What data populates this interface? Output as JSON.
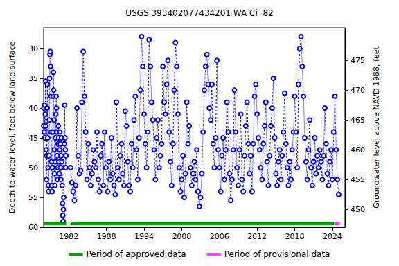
{
  "chart_data": {
    "type": "line",
    "title": "USGS 393402077434201 WA Ci  82",
    "ylabel": "Depth to water level, feet below land surface",
    "y2label": "Groundwater level above NAVD 1988, feet",
    "xlim": [
      1978,
      2026
    ],
    "xticks": [
      1982,
      1988,
      1994,
      2000,
      2006,
      2012,
      2018,
      2024
    ],
    "ylim": [
      26.5,
      60
    ],
    "yticks": [
      30,
      35,
      40,
      45,
      50,
      55,
      60
    ],
    "y2lim": [
      447,
      480.5
    ],
    "y2ticks": [
      450,
      455,
      460,
      465,
      470,
      475
    ],
    "grid": false,
    "legend": "bottom",
    "x": [
      1978.0,
      1978.05,
      1978.1,
      1978.15,
      1978.2,
      1978.25,
      1978.3,
      1978.35,
      1978.4,
      1978.45,
      1978.5,
      1978.55,
      1978.6,
      1978.65,
      1978.7,
      1978.75,
      1978.8,
      1978.85,
      1978.9,
      1978.95,
      1979.0,
      1979.05,
      1979.1,
      1979.15,
      1979.2,
      1979.25,
      1979.3,
      1979.35,
      1979.4,
      1979.45,
      1979.5,
      1979.55,
      1979.6,
      1979.65,
      1979.7,
      1979.75,
      1979.8,
      1979.85,
      1979.9,
      1979.95,
      1980.0,
      1980.05,
      1980.1,
      1980.15,
      1980.2,
      1980.25,
      1980.3,
      1980.35,
      1980.4,
      1980.45,
      1980.5,
      1980.55,
      1980.6,
      1980.65,
      1980.7,
      1980.75,
      1980.8,
      1980.85,
      1980.9,
      1980.95,
      1981.0,
      1981.05,
      1981.1,
      1981.15,
      1981.2,
      1981.25,
      1981.3,
      1981.35,
      1981.4,
      1981.45,
      1981.5,
      1981.55,
      1981.9,
      1982.3,
      1982.5,
      1982.7,
      1982.9,
      1983.1,
      1983.3,
      1983.5,
      1983.7,
      1983.9,
      1984.1,
      1984.3,
      1984.5,
      1984.7,
      1984.9,
      1985.1,
      1985.3,
      1985.5,
      1985.7,
      1985.9,
      1986.1,
      1986.3,
      1986.5,
      1986.7,
      1986.9,
      1987.1,
      1987.3,
      1987.5,
      1987.7,
      1987.9,
      1988.2,
      1988.4,
      1988.6,
      1988.8,
      1989.0,
      1989.2,
      1989.4,
      1989.6,
      1989.8,
      1990.0,
      1990.2,
      1990.4,
      1990.6,
      1990.8,
      1991.0,
      1991.2,
      1991.4,
      1991.6,
      1991.8,
      1992.0,
      1992.2,
      1992.4,
      1992.6,
      1992.8,
      1993.0,
      1993.2,
      1993.4,
      1993.6,
      1993.8,
      1994.0,
      1994.2,
      1994.4,
      1994.6,
      1994.8,
      1995.0,
      1995.2,
      1995.4,
      1995.6,
      1995.8,
      1996.0,
      1996.2,
      1996.4,
      1996.6,
      1996.8,
      1997.0,
      1997.2,
      1997.4,
      1997.6,
      1997.8,
      1998.0,
      1998.2,
      1998.4,
      1998.6,
      1998.8,
      1999.0,
      1999.2,
      1999.4,
      1999.6,
      1999.8,
      2000.0,
      2000.2,
      2000.4,
      2000.6,
      2000.8,
      2001.0,
      2001.2,
      2001.4,
      2001.6,
      2001.8,
      2002.0,
      2002.2,
      2002.4,
      2002.6,
      2002.8,
      2003.0,
      2003.2,
      2003.4,
      2003.6,
      2003.8,
      2004.0,
      2004.2,
      2004.4,
      2004.6,
      2004.8,
      2005.0,
      2005.2,
      2005.4,
      2005.6,
      2005.8,
      2006.0,
      2006.2,
      2006.4,
      2006.6,
      2006.8,
      2007.0,
      2007.2,
      2007.4,
      2007.6,
      2007.8,
      2008.0,
      2008.2,
      2008.4,
      2008.6,
      2008.8,
      2009.0,
      2009.2,
      2009.4,
      2009.6,
      2009.8,
      2010.0,
      2010.2,
      2010.4,
      2010.6,
      2010.8,
      2011.0,
      2011.2,
      2011.4,
      2011.6,
      2011.8,
      2012.0,
      2012.2,
      2012.4,
      2012.6,
      2012.8,
      2013.0,
      2013.2,
      2013.4,
      2013.6,
      2013.8,
      2014.0,
      2014.2,
      2014.4,
      2014.6,
      2014.8,
      2015.0,
      2015.2,
      2015.4,
      2015.6,
      2015.8,
      2016.0,
      2016.2,
      2016.4,
      2016.6,
      2016.8,
      2017.0,
      2017.2,
      2017.4,
      2017.6,
      2017.8,
      2018.0,
      2018.2,
      2018.4,
      2018.6,
      2018.8,
      2019.0,
      2019.2,
      2019.4,
      2019.6,
      2019.8,
      2020.0,
      2020.2,
      2020.4,
      2020.6,
      2020.8,
      2021.0,
      2021.2,
      2021.4,
      2021.6,
      2021.8,
      2022.0,
      2022.2,
      2022.4,
      2022.6,
      2022.8,
      2023.0,
      2023.2,
      2023.4,
      2023.6,
      2023.8,
      2024.0,
      2024.2,
      2024.4,
      2024.6,
      2024.8,
      2025.0
    ],
    "series": [
      {
        "color": "#0000ff",
        "marker": "circle",
        "line_style": "dotted",
        "values": [
          43,
          40,
          44,
          39.5,
          45,
          41,
          35.5,
          43,
          47,
          52,
          48,
          40,
          36,
          45,
          50,
          53,
          54,
          48,
          42,
          35,
          31,
          30.5,
          33,
          38,
          44,
          49,
          53,
          54,
          50,
          44,
          38,
          34,
          37,
          42,
          47,
          51,
          53,
          49,
          45,
          41,
          38,
          40,
          44,
          48,
          52,
          50,
          46,
          43,
          45,
          49,
          51,
          47,
          44,
          46,
          50,
          52,
          48,
          45,
          49,
          53,
          56,
          58,
          59,
          57,
          55,
          50,
          46,
          39.5,
          45,
          47,
          50,
          48,
          null,
          50,
          52.5,
          54,
          55.5,
          53,
          40,
          48,
          51,
          50.5,
          39,
          30.5,
          38,
          44,
          52,
          46,
          50,
          53,
          51,
          47,
          49,
          50,
          44,
          52,
          54,
          48,
          46,
          53,
          44,
          50,
          54,
          49,
          52,
          45,
          51,
          53,
          54.5,
          39,
          50,
          52,
          48,
          46,
          51,
          53,
          40.5,
          43,
          49,
          53,
          54,
          46,
          50,
          42,
          38,
          47,
          52,
          45,
          37,
          28,
          33,
          41,
          46,
          50,
          44,
          28.5,
          33,
          39,
          42,
          47,
          52,
          45,
          42,
          50,
          48,
          46,
          33,
          39,
          41,
          36,
          32,
          44,
          49,
          53,
          46,
          37,
          29,
          33,
          41,
          50,
          54,
          52,
          48,
          55,
          51,
          39,
          46,
          43,
          50,
          53,
          51,
          49,
          52,
          47,
          54,
          56.5,
          55,
          51,
          44,
          37,
          33,
          31,
          36,
          40,
          42,
          36,
          46,
          50,
          45,
          32,
          47,
          50,
          54,
          48,
          45,
          52,
          47,
          39,
          44,
          51,
          55.5,
          52,
          47,
          37,
          44,
          50,
          53,
          47,
          41,
          52,
          54,
          48,
          43,
          39,
          46,
          51,
          48,
          54,
          46,
          38,
          36,
          41,
          45,
          47,
          50,
          52,
          46,
          43,
          39,
          49,
          53,
          48,
          43,
          40,
          35,
          45,
          51,
          53,
          49,
          47,
          52,
          48,
          44,
          37.5,
          46,
          50,
          53,
          49,
          52,
          47,
          44,
          38,
          44,
          50,
          36,
          30,
          28,
          33,
          38,
          45,
          49,
          52,
          47,
          42,
          50,
          53,
          49,
          45,
          51,
          48,
          50,
          47,
          49,
          52,
          48,
          40,
          46,
          51,
          53,
          49,
          47,
          52,
          44,
          38,
          47,
          52,
          54.5
        ]
      }
    ],
    "periods": [
      {
        "name": "Period of approved data",
        "color": "#00a000",
        "ranges": [
          [
            1978.1,
            1981.6
          ],
          [
            1982.3,
            2024.3
          ]
        ]
      },
      {
        "name": "Period of provisional data",
        "color": "#ff44ff",
        "ranges": [
          [
            2024.3,
            2025.2
          ]
        ]
      }
    ]
  }
}
